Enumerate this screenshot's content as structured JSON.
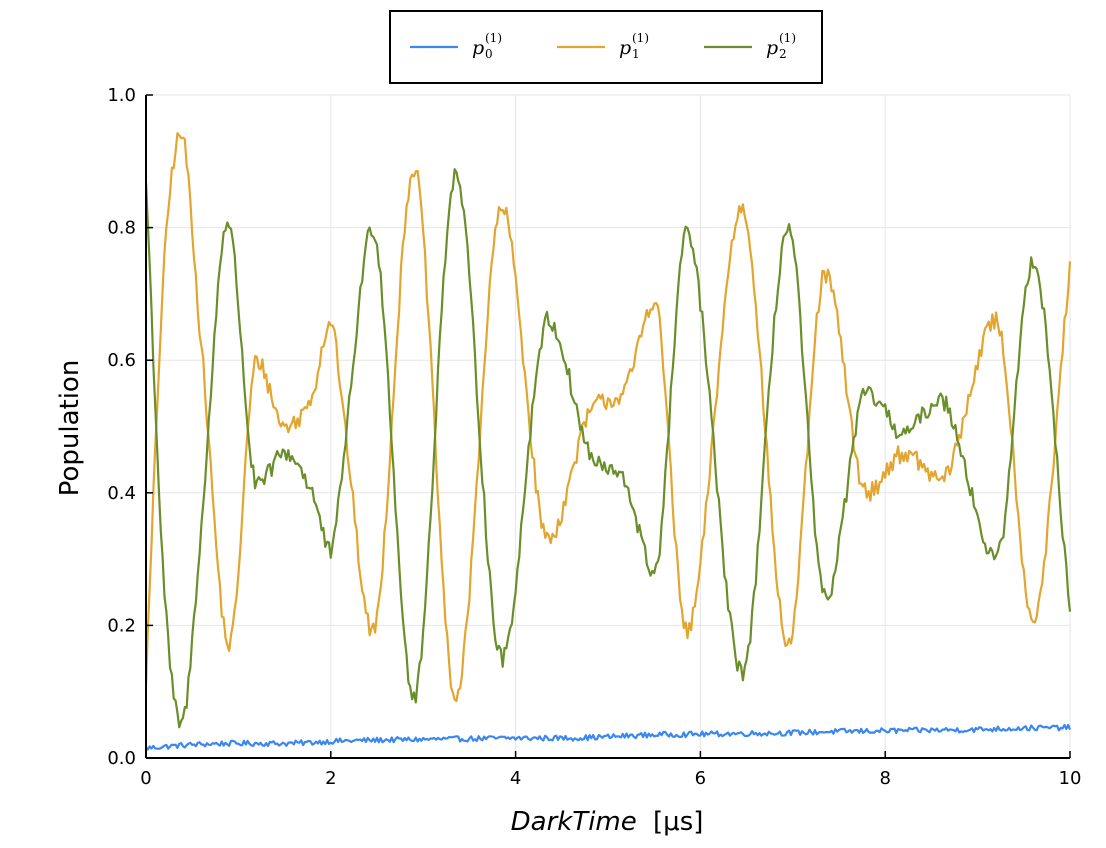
{
  "chart_data": {
    "type": "line",
    "xlabel_italic": "DarkTime",
    "xlabel_unit": "[μs]",
    "ylabel": "Population",
    "xlim": [
      0,
      10
    ],
    "ylim": [
      0.0,
      1.0
    ],
    "grid": true,
    "legend_position": "top-center",
    "xticks": [
      "0",
      "2",
      "4",
      "6",
      "8",
      "10"
    ],
    "yticks": [
      "0.0",
      "0.2",
      "0.4",
      "0.6",
      "0.8",
      "1.0"
    ],
    "series": [
      {
        "name": "p0(1)",
        "legend_base": "p",
        "legend_sub": "0",
        "legend_sup": "(1)",
        "color": "#3b87f0",
        "x": [
          0,
          0.5,
          1,
          1.5,
          2,
          2.5,
          3,
          3.5,
          4,
          4.5,
          5,
          5.5,
          6,
          6.5,
          7,
          7.5,
          8,
          8.5,
          9,
          9.5,
          10
        ],
        "y": [
          0.015,
          0.02,
          0.022,
          0.022,
          0.025,
          0.027,
          0.028,
          0.029,
          0.03,
          0.03,
          0.032,
          0.035,
          0.036,
          0.037,
          0.038,
          0.04,
          0.041,
          0.042,
          0.043,
          0.045,
          0.046
        ],
        "noise": 0.004
      },
      {
        "name": "p1(1)",
        "legend_base": "p",
        "legend_sub": "1",
        "legend_sup": "(1)",
        "color": "#e3a530",
        "x": [
          0,
          0.2,
          0.38,
          0.6,
          0.9,
          1.2,
          1.5,
          1.8,
          2.0,
          2.15,
          2.45,
          2.9,
          3.35,
          3.85,
          4.35,
          4.8,
          5.2,
          5.5,
          5.85,
          6.45,
          6.95,
          7.35,
          7.8,
          8.2,
          8.6,
          9.2,
          9.6,
          10.0
        ],
        "y": [
          0.12,
          0.75,
          0.94,
          0.62,
          0.17,
          0.6,
          0.5,
          0.55,
          0.66,
          0.5,
          0.19,
          0.89,
          0.09,
          0.83,
          0.33,
          0.52,
          0.56,
          0.69,
          0.19,
          0.83,
          0.17,
          0.73,
          0.4,
          0.46,
          0.42,
          0.66,
          0.21,
          0.74
        ],
        "noise": 0.014
      },
      {
        "name": "p2(1)",
        "legend_base": "p",
        "legend_sub": "2",
        "legend_sup": "(1)",
        "color": "#6a8f2a",
        "x": [
          0,
          0.2,
          0.38,
          0.6,
          0.88,
          1.2,
          1.5,
          1.8,
          2.0,
          2.15,
          2.45,
          2.9,
          3.35,
          3.85,
          4.35,
          4.8,
          5.2,
          5.5,
          5.85,
          6.45,
          6.95,
          7.35,
          7.8,
          8.2,
          8.6,
          9.2,
          9.6,
          10.0
        ],
        "y": [
          0.87,
          0.25,
          0.05,
          0.35,
          0.81,
          0.41,
          0.46,
          0.4,
          0.31,
          0.47,
          0.8,
          0.09,
          0.88,
          0.15,
          0.66,
          0.46,
          0.41,
          0.28,
          0.79,
          0.13,
          0.8,
          0.24,
          0.55,
          0.49,
          0.54,
          0.3,
          0.75,
          0.22
        ],
        "noise": 0.014
      }
    ]
  }
}
